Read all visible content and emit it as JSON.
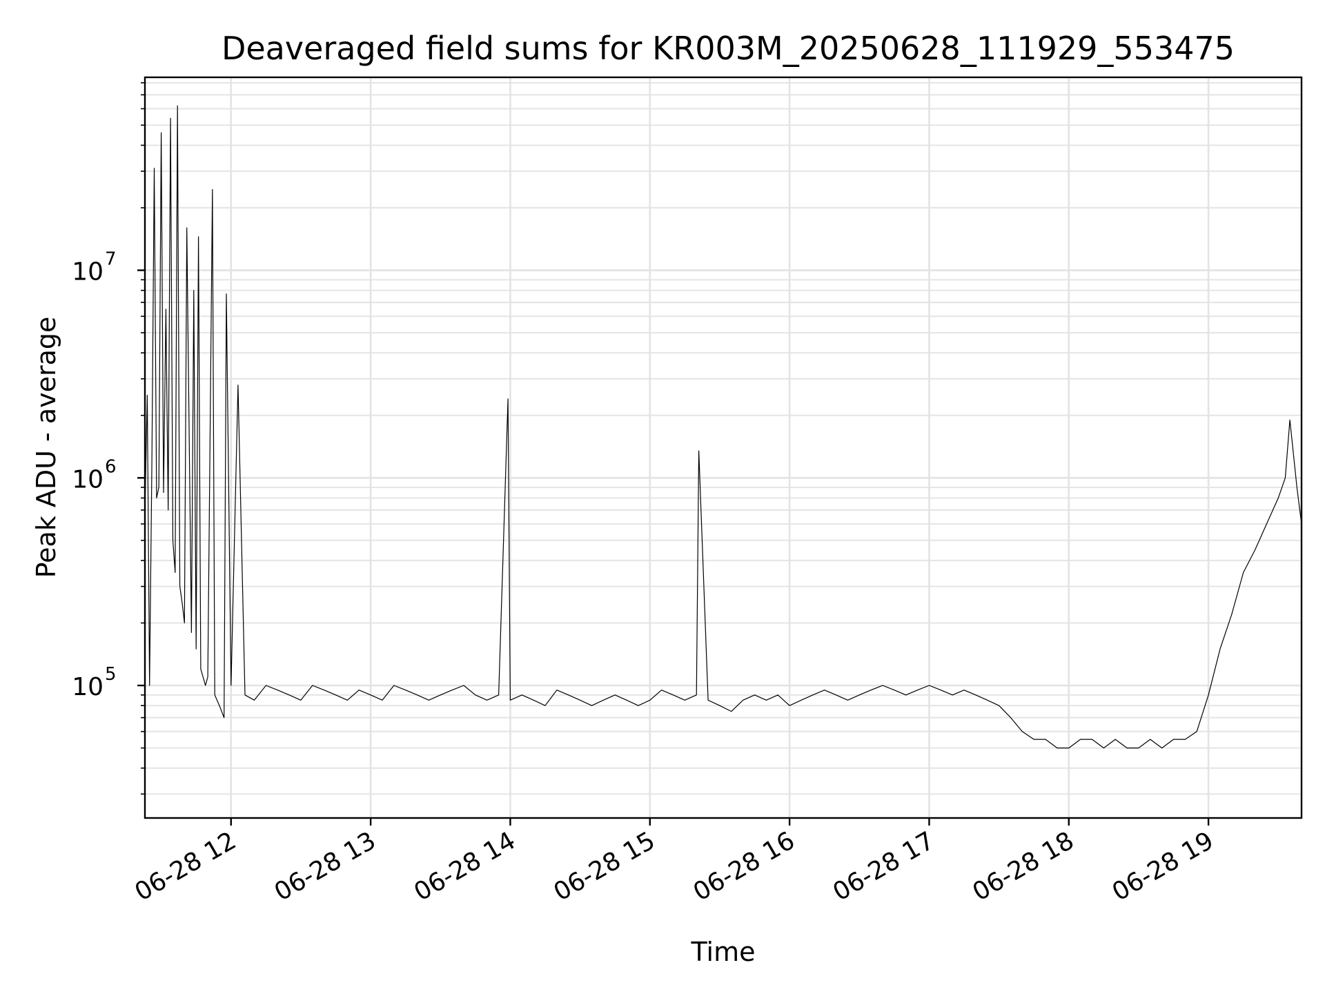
{
  "chart_data": {
    "type": "line",
    "title": "Deaveraged field sums for KR003M_20250628_111929_553475",
    "xlabel": "Time",
    "ylabel": "Peak ADU - average",
    "xlim": [
      "2025-06-28 11:23",
      "2025-06-28 19:40"
    ],
    "ylim": [
      23000,
      85000000
    ],
    "yscale": "log",
    "grid": "on",
    "line_color": "#000000",
    "x_ticks": [
      {
        "value": "2025-06-28 12:00",
        "label": "06-28 12"
      },
      {
        "value": "2025-06-28 13:00",
        "label": "06-28 13"
      },
      {
        "value": "2025-06-28 14:00",
        "label": "06-28 14"
      },
      {
        "value": "2025-06-28 15:00",
        "label": "06-28 15"
      },
      {
        "value": "2025-06-28 16:00",
        "label": "06-28 16"
      },
      {
        "value": "2025-06-28 17:00",
        "label": "06-28 17"
      },
      {
        "value": "2025-06-28 18:00",
        "label": "06-28 18"
      },
      {
        "value": "2025-06-28 19:00",
        "label": "06-28 19"
      }
    ],
    "y_ticks": [
      {
        "value": 100000,
        "base": "10",
        "exp": "5"
      },
      {
        "value": 1000000,
        "base": "10",
        "exp": "6"
      },
      {
        "value": 10000000,
        "base": "10",
        "exp": "7"
      }
    ],
    "series": [
      {
        "x": [
          "2025-06-28 11:23",
          "2025-06-28 11:24",
          "2025-06-28 11:25",
          "2025-06-28 11:26",
          "2025-06-28 11:27",
          "2025-06-28 11:28",
          "2025-06-28 11:29",
          "2025-06-28 11:30",
          "2025-06-28 11:31",
          "2025-06-28 11:32",
          "2025-06-28 11:33",
          "2025-06-28 11:34",
          "2025-06-28 11:35",
          "2025-06-28 11:36",
          "2025-06-28 11:37",
          "2025-06-28 11:38",
          "2025-06-28 11:39",
          "2025-06-28 11:40",
          "2025-06-28 11:41",
          "2025-06-28 11:43",
          "2025-06-28 11:44",
          "2025-06-28 11:45",
          "2025-06-28 11:46",
          "2025-06-28 11:47",
          "2025-06-28 11:49",
          "2025-06-28 11:50",
          "2025-06-28 11:52",
          "2025-06-28 11:53",
          "2025-06-28 11:55",
          "2025-06-28 11:57",
          "2025-06-28 11:58",
          "2025-06-28 12:00",
          "2025-06-28 12:03",
          "2025-06-28 12:06",
          "2025-06-28 12:10",
          "2025-06-28 12:15",
          "2025-06-28 12:20",
          "2025-06-28 12:25",
          "2025-06-28 12:30",
          "2025-06-28 12:35",
          "2025-06-28 12:40",
          "2025-06-28 12:45",
          "2025-06-28 12:50",
          "2025-06-28 12:55",
          "2025-06-28 13:00",
          "2025-06-28 13:05",
          "2025-06-28 13:10",
          "2025-06-28 13:15",
          "2025-06-28 13:20",
          "2025-06-28 13:25",
          "2025-06-28 13:30",
          "2025-06-28 13:35",
          "2025-06-28 13:40",
          "2025-06-28 13:45",
          "2025-06-28 13:50",
          "2025-06-28 13:55",
          "2025-06-28 13:59",
          "2025-06-28 14:00",
          "2025-06-28 14:05",
          "2025-06-28 14:10",
          "2025-06-28 14:15",
          "2025-06-28 14:20",
          "2025-06-28 14:25",
          "2025-06-28 14:30",
          "2025-06-28 14:35",
          "2025-06-28 14:40",
          "2025-06-28 14:45",
          "2025-06-28 14:50",
          "2025-06-28 14:55",
          "2025-06-28 15:00",
          "2025-06-28 15:05",
          "2025-06-28 15:10",
          "2025-06-28 15:15",
          "2025-06-28 15:20",
          "2025-06-28 15:21",
          "2025-06-28 15:25",
          "2025-06-28 15:30",
          "2025-06-28 15:35",
          "2025-06-28 15:40",
          "2025-06-28 15:45",
          "2025-06-28 15:50",
          "2025-06-28 15:55",
          "2025-06-28 16:00",
          "2025-06-28 16:05",
          "2025-06-28 16:10",
          "2025-06-28 16:15",
          "2025-06-28 16:20",
          "2025-06-28 16:25",
          "2025-06-28 16:30",
          "2025-06-28 16:35",
          "2025-06-28 16:40",
          "2025-06-28 16:45",
          "2025-06-28 16:50",
          "2025-06-28 16:55",
          "2025-06-28 17:00",
          "2025-06-28 17:05",
          "2025-06-28 17:10",
          "2025-06-28 17:15",
          "2025-06-28 17:20",
          "2025-06-28 17:25",
          "2025-06-28 17:30",
          "2025-06-28 17:35",
          "2025-06-28 17:40",
          "2025-06-28 17:45",
          "2025-06-28 17:50",
          "2025-06-28 17:55",
          "2025-06-28 18:00",
          "2025-06-28 18:05",
          "2025-06-28 18:10",
          "2025-06-28 18:15",
          "2025-06-28 18:20",
          "2025-06-28 18:25",
          "2025-06-28 18:30",
          "2025-06-28 18:35",
          "2025-06-28 18:40",
          "2025-06-28 18:45",
          "2025-06-28 18:50",
          "2025-06-28 18:55",
          "2025-06-28 19:00",
          "2025-06-28 19:05",
          "2025-06-28 19:10",
          "2025-06-28 19:15",
          "2025-06-28 19:20",
          "2025-06-28 19:25",
          "2025-06-28 19:30",
          "2025-06-28 19:33",
          "2025-06-28 19:35",
          "2025-06-28 19:38",
          "2025-06-28 19:40"
        ],
        "y": [
          700000,
          2500000,
          100000,
          1200000,
          31000000,
          800000,
          900000,
          46000000,
          850000,
          6500000,
          700000,
          54000000,
          500000,
          350000,
          62000000,
          300000,
          250000,
          200000,
          16000000,
          180000,
          8000000,
          150000,
          14500000,
          120000,
          100000,
          110000,
          24500000,
          90000,
          80000,
          70000,
          7700000,
          100000,
          2800000,
          90000,
          85000,
          100000,
          95000,
          90000,
          85000,
          100000,
          95000,
          90000,
          85000,
          95000,
          90000,
          85000,
          100000,
          95000,
          90000,
          85000,
          90000,
          95000,
          100000,
          90000,
          85000,
          90000,
          2400000,
          85000,
          90000,
          85000,
          80000,
          95000,
          90000,
          85000,
          80000,
          85000,
          90000,
          85000,
          80000,
          85000,
          95000,
          90000,
          85000,
          90000,
          1350000,
          85000,
          80000,
          75000,
          85000,
          90000,
          85000,
          90000,
          80000,
          85000,
          90000,
          95000,
          90000,
          85000,
          90000,
          95000,
          100000,
          95000,
          90000,
          95000,
          100000,
          95000,
          90000,
          95000,
          90000,
          85000,
          80000,
          70000,
          60000,
          55000,
          55000,
          50000,
          50000,
          55000,
          55000,
          50000,
          55000,
          50000,
          50000,
          55000,
          50000,
          55000,
          55000,
          60000,
          90000,
          150000,
          220000,
          350000,
          450000,
          600000,
          800000,
          1000000,
          1900000,
          900000,
          600000
        ]
      }
    ]
  }
}
